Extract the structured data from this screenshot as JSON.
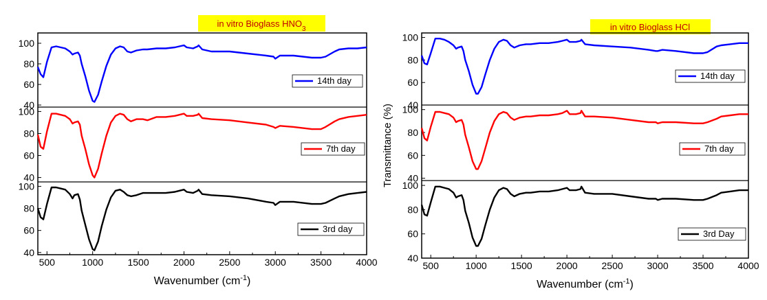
{
  "chart_data": [
    {
      "type": "line",
      "title": "in vitro Bioglass HNO",
      "title_subscript": "3",
      "xlabel": "Wavenumber (cm",
      "xlabel_sup": "-1",
      "xlabel_close": ")",
      "ylabel": "",
      "xlim": [
        400,
        4000
      ],
      "x_ticks": [
        "500",
        "1000",
        "1500",
        "2000",
        "2500",
        "3000",
        "3500",
        "4000"
      ],
      "legend_placement": "right",
      "panels": [
        {
          "name": "14th day",
          "color": "#0000ff",
          "ylim": [
            38,
            110
          ],
          "y_ticks": [
            "40",
            "60",
            "80",
            "100"
          ],
          "x": [
            400,
            430,
            460,
            500,
            550,
            600,
            650,
            700,
            750,
            780,
            800,
            840,
            860,
            880,
            920,
            960,
            1000,
            1020,
            1060,
            1100,
            1150,
            1200,
            1250,
            1300,
            1340,
            1380,
            1420,
            1480,
            1550,
            1600,
            1700,
            1800,
            1900,
            1950,
            2000,
            2030,
            2100,
            2150,
            2160,
            2200,
            2300,
            2500,
            2700,
            2900,
            2980,
            3000,
            3050,
            3200,
            3400,
            3500,
            3550,
            3650,
            3700,
            3800,
            3900,
            4000
          ],
          "values": [
            77,
            70,
            67,
            82,
            96,
            97,
            96,
            95,
            92,
            89,
            90,
            91,
            88,
            80,
            68,
            54,
            44,
            43,
            50,
            63,
            78,
            89,
            95,
            97,
            96,
            92,
            91,
            93,
            94,
            94,
            95,
            95,
            96,
            97,
            98,
            96,
            95,
            97,
            98,
            94,
            92,
            92,
            90,
            88,
            87,
            85,
            88,
            88,
            86,
            86,
            87,
            92,
            94,
            95,
            95,
            96
          ]
        },
        {
          "name": "7th day",
          "color": "#ff0000",
          "ylim": [
            36,
            104
          ],
          "y_ticks": [
            "40",
            "60",
            "80",
            "100"
          ],
          "x": [
            400,
            430,
            460,
            500,
            550,
            600,
            650,
            700,
            750,
            780,
            800,
            840,
            860,
            880,
            920,
            960,
            1000,
            1020,
            1060,
            1100,
            1150,
            1200,
            1250,
            1300,
            1340,
            1380,
            1420,
            1480,
            1550,
            1600,
            1700,
            1800,
            1900,
            1950,
            2000,
            2030,
            2100,
            2150,
            2160,
            2200,
            2300,
            2500,
            2700,
            2900,
            2980,
            3000,
            3050,
            3200,
            3400,
            3500,
            3550,
            3650,
            3700,
            3800,
            3900,
            4000
          ],
          "values": [
            79,
            68,
            66,
            82,
            98,
            98,
            97,
            96,
            93,
            89,
            90,
            91,
            88,
            78,
            66,
            52,
            42,
            40,
            48,
            62,
            78,
            90,
            96,
            98,
            97,
            93,
            91,
            93,
            93,
            92,
            95,
            95,
            96,
            97,
            98,
            96,
            96,
            97,
            98,
            94,
            93,
            92,
            90,
            88,
            86,
            85,
            87,
            86,
            84,
            84,
            86,
            91,
            93,
            95,
            96,
            97
          ]
        },
        {
          "name": "3rd day",
          "color": "#000000",
          "ylim": [
            38,
            104
          ],
          "y_ticks": [
            "40",
            "60",
            "80",
            "100"
          ],
          "x": [
            400,
            430,
            460,
            500,
            550,
            600,
            650,
            700,
            750,
            780,
            800,
            840,
            860,
            880,
            920,
            960,
            1000,
            1020,
            1060,
            1100,
            1150,
            1200,
            1250,
            1300,
            1340,
            1380,
            1420,
            1480,
            1550,
            1600,
            1700,
            1800,
            1900,
            1950,
            2000,
            2030,
            2100,
            2150,
            2160,
            2200,
            2300,
            2500,
            2700,
            2900,
            2980,
            3000,
            3050,
            3200,
            3400,
            3500,
            3550,
            3650,
            3700,
            3800,
            3900,
            4000
          ],
          "values": [
            80,
            72,
            70,
            84,
            99,
            99,
            98,
            97,
            93,
            89,
            92,
            93,
            88,
            78,
            65,
            52,
            43,
            42,
            50,
            64,
            79,
            90,
            96,
            97,
            95,
            92,
            91,
            92,
            94,
            94,
            94,
            94,
            95,
            96,
            97,
            95,
            94,
            96,
            97,
            93,
            92,
            91,
            89,
            86,
            85,
            83,
            86,
            86,
            84,
            84,
            85,
            89,
            91,
            93,
            94,
            95
          ]
        }
      ]
    },
    {
      "type": "line",
      "title": "in vitro Bioglass HCl",
      "title_subscript": "",
      "xlabel": "Wavenumber (cm",
      "xlabel_sup": "-1",
      "xlabel_close": ")",
      "ylabel": "Transmittance (%)",
      "xlim": [
        400,
        4000
      ],
      "x_ticks": [
        "500",
        "1000",
        "1500",
        "2000",
        "2500",
        "3000",
        "3500",
        "4000"
      ],
      "legend_placement": "right",
      "panels": [
        {
          "name": "14th day",
          "color": "#0000ff",
          "ylim": [
            40,
            104
          ],
          "y_ticks": [
            "40",
            "60",
            "80",
            "100"
          ],
          "x": [
            400,
            430,
            460,
            500,
            550,
            600,
            650,
            700,
            750,
            780,
            800,
            840,
            860,
            880,
            920,
            960,
            1000,
            1020,
            1060,
            1100,
            1150,
            1200,
            1250,
            1300,
            1340,
            1380,
            1420,
            1480,
            1550,
            1600,
            1700,
            1800,
            1900,
            1950,
            2000,
            2030,
            2100,
            2150,
            2160,
            2200,
            2300,
            2500,
            2700,
            2900,
            2980,
            3000,
            3050,
            3200,
            3400,
            3500,
            3550,
            3650,
            3700,
            3800,
            3900,
            4000
          ],
          "values": [
            84,
            77,
            76,
            86,
            99,
            99,
            98,
            96,
            93,
            90,
            91,
            92,
            88,
            80,
            70,
            58,
            50,
            50,
            56,
            67,
            80,
            90,
            96,
            98,
            97,
            93,
            91,
            93,
            94,
            94,
            95,
            95,
            96,
            97,
            98,
            96,
            96,
            97,
            98,
            94,
            93,
            92,
            91,
            89,
            88,
            88,
            89,
            88,
            86,
            86,
            87,
            92,
            93,
            94,
            95,
            95
          ]
        },
        {
          "name": "7th day",
          "color": "#ff0000",
          "ylim": [
            38,
            104
          ],
          "y_ticks": [
            "40",
            "60",
            "80",
            "100"
          ],
          "x": [
            400,
            430,
            460,
            500,
            550,
            600,
            650,
            700,
            750,
            780,
            800,
            840,
            860,
            880,
            920,
            960,
            1000,
            1020,
            1060,
            1100,
            1150,
            1200,
            1250,
            1300,
            1340,
            1380,
            1420,
            1480,
            1550,
            1600,
            1700,
            1800,
            1900,
            1950,
            2000,
            2030,
            2100,
            2150,
            2160,
            2200,
            2300,
            2500,
            2700,
            2900,
            2980,
            3000,
            3050,
            3200,
            3400,
            3500,
            3550,
            3650,
            3700,
            3800,
            3900,
            4000
          ],
          "values": [
            84,
            75,
            73,
            85,
            98,
            98,
            97,
            96,
            93,
            89,
            90,
            91,
            87,
            78,
            67,
            55,
            48,
            48,
            55,
            66,
            80,
            90,
            96,
            98,
            97,
            93,
            91,
            93,
            94,
            94,
            95,
            95,
            96,
            97,
            99,
            96,
            96,
            97,
            99,
            94,
            94,
            93,
            91,
            89,
            89,
            88,
            89,
            89,
            88,
            88,
            89,
            92,
            94,
            95,
            96,
            96
          ]
        },
        {
          "name": "3rd Day",
          "color": "#000000",
          "ylim": [
            40,
            104
          ],
          "y_ticks": [
            "40",
            "60",
            "80",
            "100"
          ],
          "x": [
            400,
            430,
            460,
            500,
            550,
            600,
            650,
            700,
            750,
            780,
            800,
            840,
            860,
            880,
            920,
            960,
            1000,
            1020,
            1060,
            1100,
            1150,
            1200,
            1250,
            1300,
            1340,
            1380,
            1420,
            1480,
            1550,
            1600,
            1700,
            1800,
            1900,
            1950,
            2000,
            2030,
            2100,
            2150,
            2160,
            2200,
            2300,
            2500,
            2700,
            2900,
            2980,
            3000,
            3050,
            3200,
            3400,
            3500,
            3550,
            3650,
            3700,
            3800,
            3900,
            4000
          ],
          "values": [
            84,
            76,
            75,
            86,
            99,
            99,
            98,
            97,
            94,
            90,
            91,
            92,
            88,
            79,
            69,
            57,
            50,
            50,
            56,
            67,
            80,
            90,
            96,
            98,
            97,
            93,
            91,
            93,
            94,
            94,
            95,
            95,
            96,
            97,
            98,
            96,
            96,
            97,
            99,
            94,
            93,
            93,
            91,
            89,
            89,
            88,
            89,
            89,
            88,
            88,
            89,
            92,
            94,
            95,
            96,
            96
          ]
        }
      ]
    }
  ]
}
